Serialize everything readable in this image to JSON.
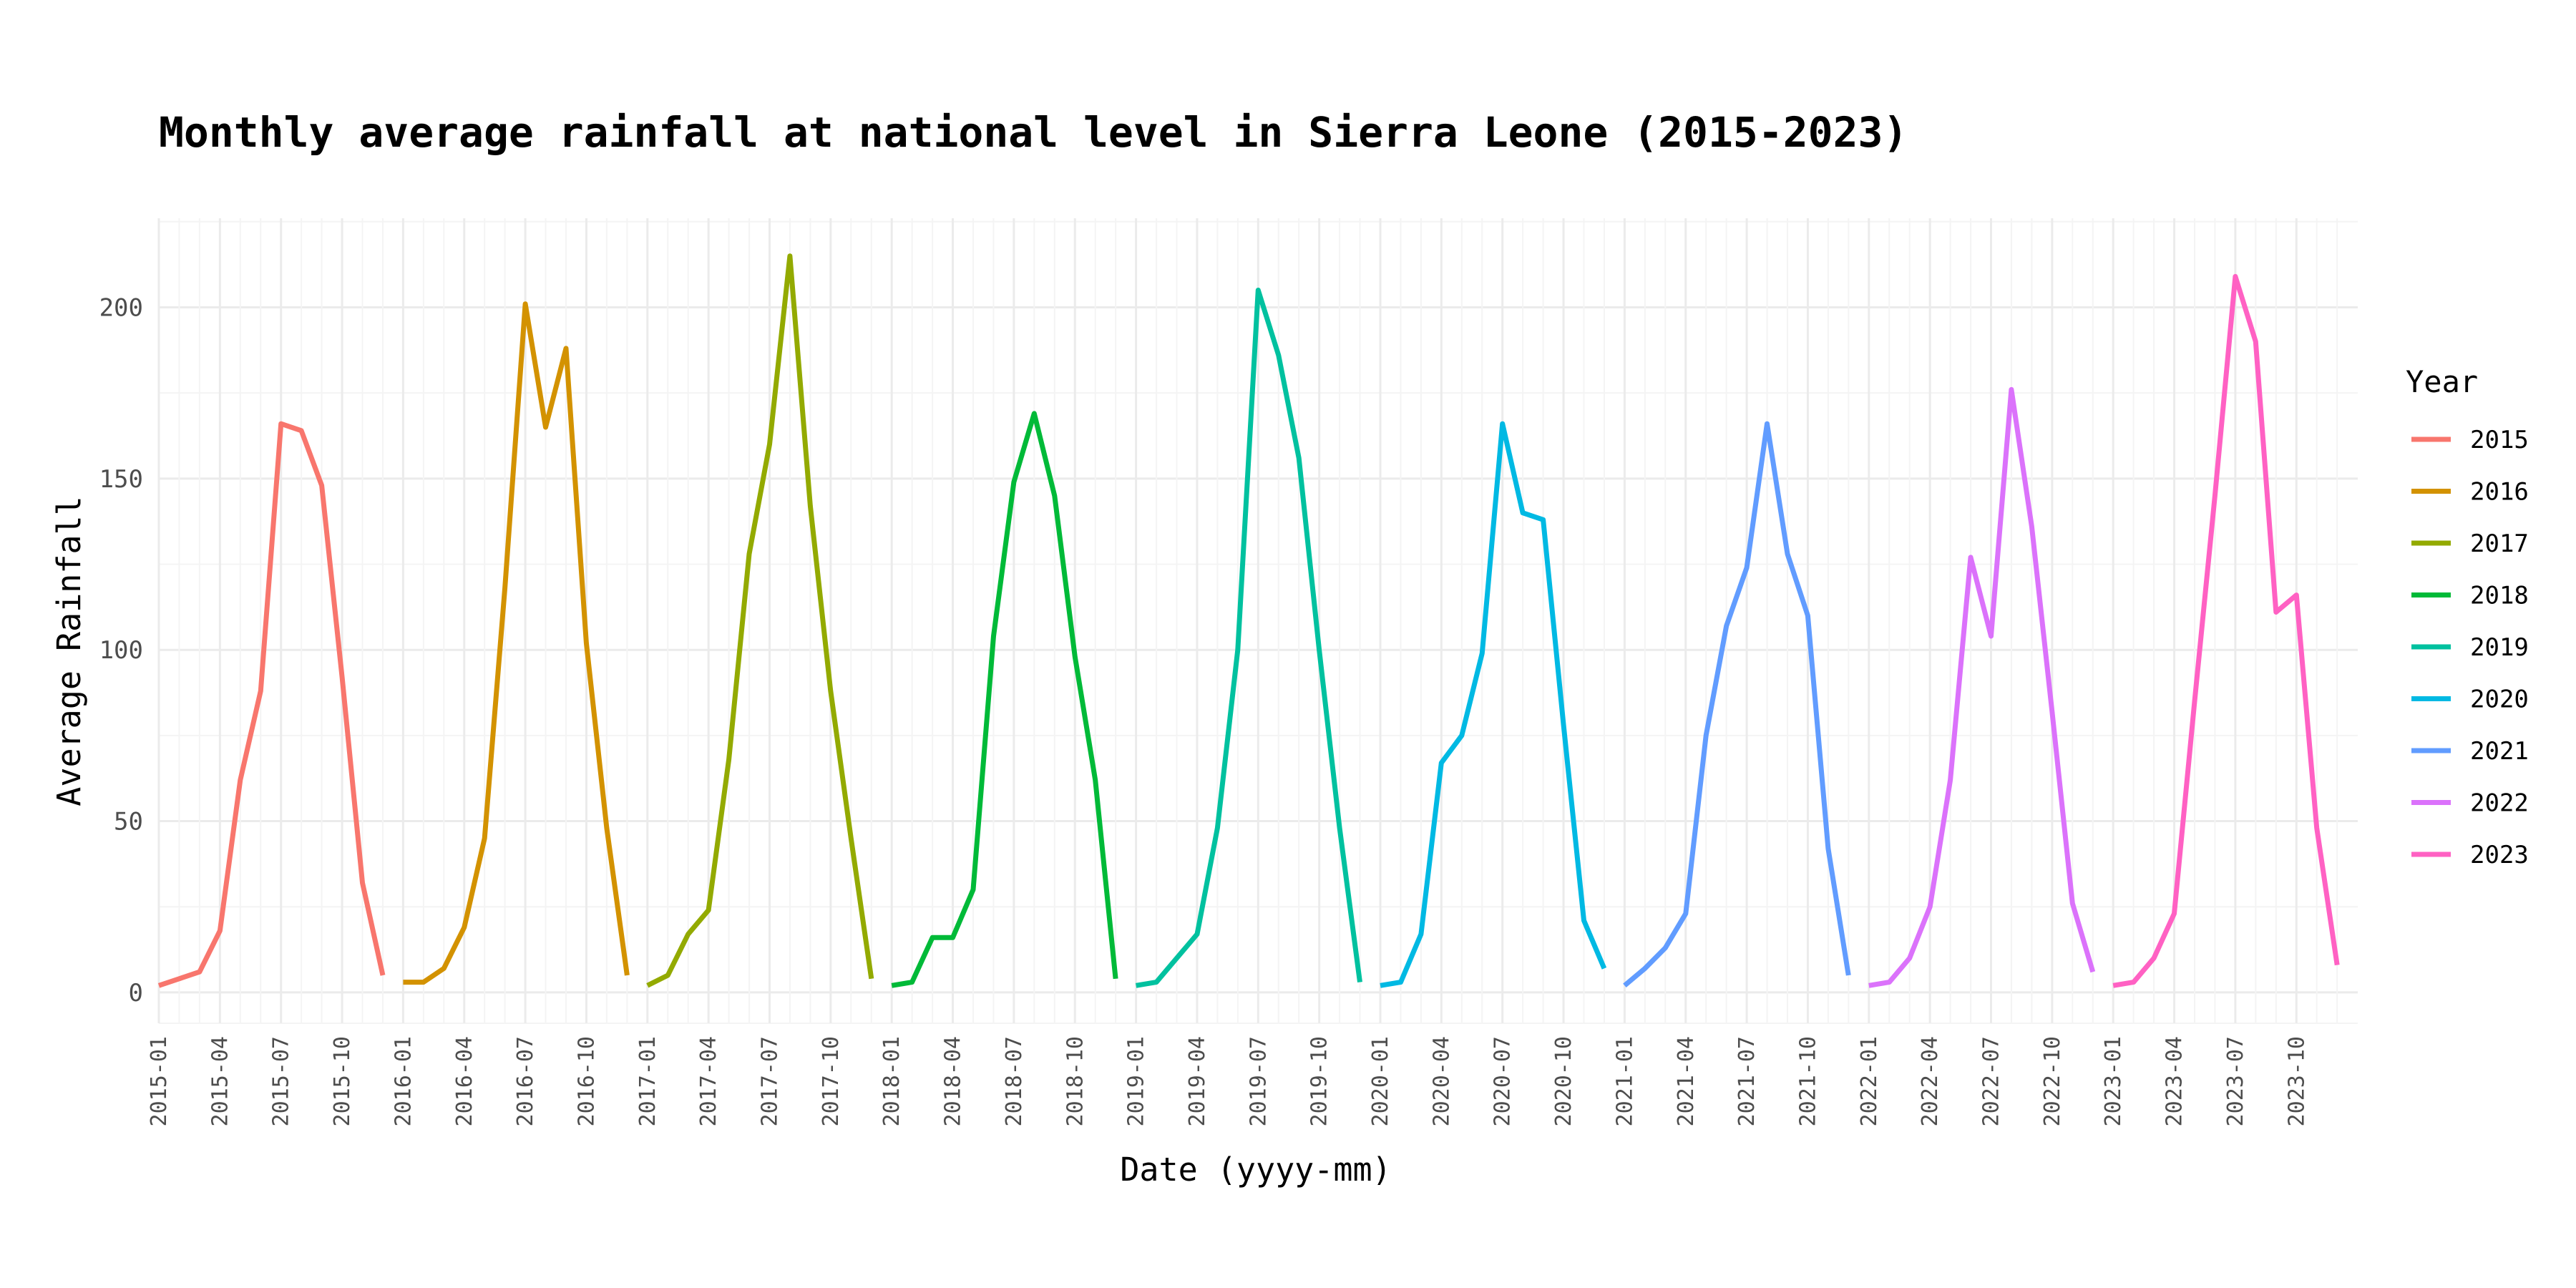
{
  "chart_data": {
    "type": "line",
    "title": "Monthly average rainfall at national level in Sierra Leone (2015-2023)",
    "xlabel": "Date (yyyy-mm)",
    "ylabel": "Average Rainfall",
    "ylim": [
      -9,
      226
    ],
    "y_ticks": [
      0,
      50,
      100,
      150,
      200
    ],
    "x_ticks": [
      "2015-01",
      "2015-04",
      "2015-07",
      "2015-10",
      "2016-01",
      "2016-04",
      "2016-07",
      "2016-10",
      "2017-01",
      "2017-04",
      "2017-07",
      "2017-10",
      "2018-01",
      "2018-04",
      "2018-07",
      "2018-10",
      "2019-01",
      "2019-04",
      "2019-07",
      "2019-10",
      "2020-01",
      "2020-04",
      "2020-07",
      "2020-10",
      "2021-01",
      "2021-04",
      "2021-07",
      "2021-10",
      "2022-01",
      "2022-04",
      "2022-07",
      "2022-10",
      "2023-01",
      "2023-04",
      "2023-07",
      "2023-10"
    ],
    "grid": true,
    "legend": {
      "title": "Year",
      "position": "right"
    },
    "series": [
      {
        "name": "2015",
        "color": "#F8766D",
        "values": [
          2,
          4,
          6,
          18,
          62,
          88,
          166,
          164,
          148,
          92,
          32,
          5
        ]
      },
      {
        "name": "2016",
        "color": "#D39200",
        "values": [
          3,
          3,
          7,
          19,
          45,
          118,
          201,
          165,
          188,
          102,
          48,
          5
        ]
      },
      {
        "name": "2017",
        "color": "#93AA00",
        "values": [
          2,
          5,
          17,
          24,
          68,
          128,
          160,
          215,
          142,
          88,
          45,
          4
        ]
      },
      {
        "name": "2018",
        "color": "#00BA38",
        "values": [
          2,
          3,
          16,
          16,
          30,
          104,
          149,
          169,
          145,
          98,
          62,
          4
        ]
      },
      {
        "name": "2019",
        "color": "#00C19F",
        "values": [
          2,
          3,
          10,
          17,
          48,
          100,
          205,
          186,
          156,
          100,
          48,
          3
        ]
      },
      {
        "name": "2020",
        "color": "#00B9E3",
        "values": [
          2,
          3,
          17,
          67,
          75,
          99,
          166,
          140,
          138,
          78,
          21,
          7
        ]
      },
      {
        "name": "2021",
        "color": "#619CFF",
        "values": [
          2,
          7,
          13,
          23,
          75,
          107,
          124,
          166,
          128,
          110,
          42,
          5
        ]
      },
      {
        "name": "2022",
        "color": "#DB72FB",
        "values": [
          2,
          3,
          10,
          25,
          62,
          127,
          104,
          176,
          136,
          82,
          26,
          6
        ]
      },
      {
        "name": "2023",
        "color": "#FF61C3",
        "values": [
          2,
          3,
          10,
          23,
          85,
          145,
          209,
          190,
          111,
          116,
          48,
          8
        ]
      }
    ]
  }
}
